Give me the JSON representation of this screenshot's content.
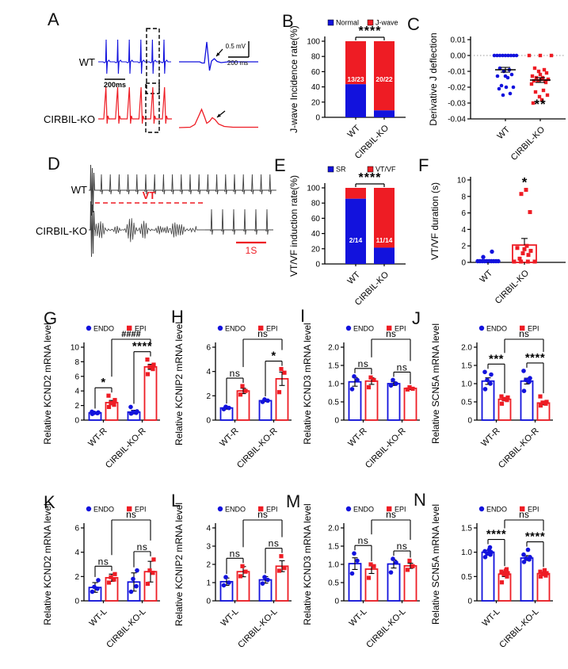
{
  "colors": {
    "blue": "#1212dd",
    "red": "#ee1c24",
    "trace": "#3f3f3f",
    "white": "#ffffff",
    "black": "#000000"
  },
  "panels": {
    "A": {
      "letter": "A",
      "trace_labels": [
        "WT",
        "CIRBIL-KO"
      ],
      "scalebar_time": "200ms",
      "inset_scale_voltage": "0.5 mV",
      "inset_scale_time": "200 ms"
    },
    "B": {
      "letter": "B"
    },
    "C": {
      "letter": "C"
    },
    "D": {
      "letter": "D",
      "trace_labels": [
        "WT",
        "CIRBIL-KO"
      ],
      "vt_label": "VT",
      "scalebar": "1S"
    },
    "E": {
      "letter": "E"
    },
    "F": {
      "letter": "F"
    },
    "G": {
      "letter": "G"
    },
    "H": {
      "letter": "H"
    },
    "I": {
      "letter": "I"
    },
    "J": {
      "letter": "J"
    },
    "K": {
      "letter": "K"
    },
    "L": {
      "letter": "L"
    },
    "M": {
      "letter": "M"
    },
    "N": {
      "letter": "N"
    }
  },
  "chart_data": {
    "B": {
      "type": "stacked_bar",
      "ylabel": "J-wave Incidence rate(%)",
      "legend": [
        {
          "label": "Normal",
          "color": "blue"
        },
        {
          "label": "J-wave",
          "color": "red"
        }
      ],
      "categories": [
        "WT",
        "CIRBIL-KO"
      ],
      "blue_pct": [
        43.5,
        9.1
      ],
      "counts": [
        "13/23",
        "20/22"
      ],
      "count_y_pct": [
        47,
        47
      ],
      "yticks": [
        0,
        20,
        40,
        60,
        80,
        100
      ],
      "ytick_labels": [
        "0",
        "20",
        "40",
        "60",
        "80",
        "100"
      ],
      "sig": "****"
    },
    "E": {
      "type": "stacked_bar",
      "ylabel": "VT/VF induction rate(%)",
      "legend": [
        {
          "label": "SR",
          "color": "blue"
        },
        {
          "label": "VT/VF",
          "color": "red"
        }
      ],
      "categories": [
        "WT",
        "CIRBIL-KO"
      ],
      "blue_pct": [
        85.7,
        21.4
      ],
      "counts": [
        "2/14",
        "11/14"
      ],
      "count_y_pct": [
        28,
        28
      ],
      "yticks": [
        0,
        20,
        40,
        60,
        80,
        100
      ],
      "ytick_labels": [
        "0",
        "20",
        "40",
        "60",
        "80",
        "100"
      ],
      "sig": "****"
    },
    "C": {
      "type": "column_scatter",
      "ylabel": "Derivative J deflection",
      "ymin": -0.04,
      "ymax": 0.01,
      "yticks": [
        0.01,
        0,
        -0.01,
        -0.02,
        -0.03,
        -0.04
      ],
      "ytick_labels": [
        "0.01",
        "0.00",
        "-0.01",
        "-0.02",
        "-0.03",
        "-0.04"
      ],
      "groups": [
        {
          "label": "WT",
          "color": "blue",
          "marker": "circle",
          "mean": -0.009,
          "sem": 0.0015,
          "points": [
            0,
            0,
            0,
            0,
            0,
            0,
            0,
            0,
            0,
            -0.008,
            -0.009,
            -0.01,
            -0.012,
            -0.013,
            -0.013,
            -0.014,
            -0.019,
            -0.02,
            -0.02,
            -0.021,
            -0.024,
            -0.025
          ]
        },
        {
          "label": "CIRBIL-KO",
          "color": "red",
          "marker": "square",
          "mean": -0.0155,
          "sem": 0.0015,
          "sig": "**",
          "points": [
            0,
            0,
            0,
            -0.008,
            -0.009,
            -0.01,
            -0.011,
            -0.012,
            -0.013,
            -0.014,
            -0.014,
            -0.015,
            -0.015,
            -0.016,
            -0.016,
            -0.016,
            -0.017,
            -0.018,
            -0.022,
            -0.023,
            -0.025,
            -0.026,
            -0.028,
            -0.03
          ]
        }
      ]
    },
    "F": {
      "type": "duration_scatter",
      "ylabel": "VT/VF duration (s)",
      "ymax": 10,
      "yticks": [
        0,
        2,
        4,
        6,
        8,
        10
      ],
      "ytick_labels": [
        "0",
        "2",
        "4",
        "6",
        "8",
        "10"
      ],
      "groups": [
        {
          "label": "WT",
          "color": "blue",
          "marker": "circle",
          "points": [
            0,
            0,
            0,
            0,
            0,
            0,
            0,
            0,
            0,
            0,
            0.65,
            1.3
          ]
        },
        {
          "label": "CIRBIL-KO",
          "color": "red",
          "marker": "square",
          "bar_mean": 2.1,
          "err": 0.8,
          "sig": "*",
          "points": [
            0,
            0,
            0,
            0,
            0.45,
            0.9,
            1.1,
            1.4,
            1.6,
            1.75,
            2.0,
            6.1,
            8.3,
            8.8
          ]
        }
      ]
    },
    "G": {
      "type": "grouped_bar",
      "ylabel": "Relative KCND2 mRNA level",
      "ymax": 10,
      "yticks": [
        0,
        2,
        4,
        6,
        8,
        10
      ],
      "ytick_labels": [
        "0",
        "2",
        "4",
        "6",
        "8",
        "10"
      ],
      "legend": [
        {
          "label": "ENDO",
          "color": "blue"
        },
        {
          "label": "EPI",
          "color": "red"
        }
      ],
      "groups": [
        "WT-R",
        "CIRBIL-KO-R"
      ],
      "bars": [
        {
          "series": "ENDO",
          "mean": 1.0,
          "err": 0.12,
          "points": [
            0.85,
            0.95,
            1.0,
            1.05,
            1.15
          ]
        },
        {
          "series": "EPI",
          "mean": 2.4,
          "err": 0.3,
          "points": [
            1.8,
            2.1,
            2.35,
            2.75,
            3.35
          ]
        },
        {
          "series": "ENDO",
          "mean": 1.1,
          "err": 0.25,
          "points": [
            0.9,
            1.0,
            1.1,
            1.2,
            1.8
          ]
        },
        {
          "series": "EPI",
          "mean": 7.3,
          "err": 0.35,
          "points": [
            6.3,
            7.0,
            7.3,
            7.6,
            8.3
          ]
        }
      ],
      "sig": [
        {
          "kind": "within",
          "group": 0,
          "label": "*"
        },
        {
          "kind": "within",
          "group": 1,
          "label": "****"
        },
        {
          "kind": "across",
          "label": "####"
        }
      ]
    },
    "H": {
      "type": "grouped_bar",
      "ylabel": "Relative KCNIP2 mRNA level",
      "ymax": 6,
      "yticks": [
        0,
        2,
        4,
        6
      ],
      "ytick_labels": [
        "0",
        "2",
        "4",
        "6"
      ],
      "legend": [
        {
          "label": "ENDO",
          "color": "blue"
        },
        {
          "label": "EPI",
          "color": "red"
        }
      ],
      "groups": [
        "WT-R",
        "CIRBIL-KO-R"
      ],
      "bars": [
        {
          "series": "ENDO",
          "mean": 1.0,
          "err": 0.1,
          "points": [
            0.9,
            1.0,
            1.1
          ]
        },
        {
          "series": "EPI",
          "mean": 2.4,
          "err": 0.22,
          "points": [
            2.1,
            2.4,
            2.8
          ]
        },
        {
          "series": "ENDO",
          "mean": 1.6,
          "err": 0.08,
          "points": [
            1.5,
            1.6,
            1.7
          ]
        },
        {
          "series": "EPI",
          "mean": 3.4,
          "err": 0.55,
          "points": [
            2.3,
            3.9,
            4.2
          ]
        }
      ],
      "sig": [
        {
          "kind": "within",
          "group": 0,
          "label": "ns"
        },
        {
          "kind": "within",
          "group": 1,
          "label": "*"
        },
        {
          "kind": "across",
          "label": "ns"
        }
      ]
    },
    "I": {
      "type": "grouped_bar",
      "ylabel": "Relative KCND3 mRNA level",
      "ymax": 2,
      "yticks": [
        0,
        0.5,
        1,
        1.5,
        2
      ],
      "ytick_labels": [
        "0",
        "0.5",
        "1.0",
        "1.5",
        "2.0"
      ],
      "legend": [
        {
          "label": "ENDO",
          "color": "blue"
        },
        {
          "label": "EPI",
          "color": "red"
        }
      ],
      "groups": [
        "WT-R",
        "CIRBIL-KO-R"
      ],
      "bars": [
        {
          "series": "ENDO",
          "mean": 1.05,
          "err": 0.12,
          "points": [
            0.85,
            1.1,
            1.2
          ]
        },
        {
          "series": "EPI",
          "mean": 1.07,
          "err": 0.09,
          "points": [
            0.9,
            1.1,
            1.17
          ]
        },
        {
          "series": "ENDO",
          "mean": 1.0,
          "err": 0.05,
          "points": [
            0.95,
            1.0,
            1.1
          ]
        },
        {
          "series": "EPI",
          "mean": 0.87,
          "err": 0.03,
          "points": [
            0.84,
            0.86,
            0.9
          ]
        }
      ],
      "sig": [
        {
          "kind": "within",
          "group": 0,
          "label": "ns"
        },
        {
          "kind": "within",
          "group": 1,
          "label": "ns"
        },
        {
          "kind": "across",
          "label": "ns"
        }
      ]
    },
    "J": {
      "type": "grouped_bar",
      "ylabel": "Relative SCN5A mRNA level",
      "ymax": 2,
      "yticks": [
        0,
        0.5,
        1,
        1.5,
        2
      ],
      "ytick_labels": [
        "0",
        "0.5",
        "1.0",
        "1.5",
        "2.0"
      ],
      "legend": [
        {
          "label": "ENDO",
          "color": "blue"
        },
        {
          "label": "EPI",
          "color": "red"
        }
      ],
      "groups": [
        "WT-R",
        "CIRBIL-KO-R"
      ],
      "bars": [
        {
          "series": "ENDO",
          "mean": 1.07,
          "err": 0.09,
          "points": [
            0.85,
            1.0,
            1.1,
            1.25,
            1.32
          ]
        },
        {
          "series": "EPI",
          "mean": 0.57,
          "err": 0.04,
          "points": [
            0.45,
            0.55,
            0.58,
            0.62,
            0.65
          ]
        },
        {
          "series": "ENDO",
          "mean": 1.07,
          "err": 0.08,
          "points": [
            0.8,
            1.05,
            1.1,
            1.15,
            1.35
          ]
        },
        {
          "series": "EPI",
          "mean": 0.47,
          "err": 0.05,
          "points": [
            0.4,
            0.45,
            0.48,
            0.5,
            0.65
          ]
        }
      ],
      "sig": [
        {
          "kind": "within",
          "group": 0,
          "label": "***"
        },
        {
          "kind": "within",
          "group": 1,
          "label": "****"
        },
        {
          "kind": "across",
          "label": "ns"
        }
      ]
    },
    "K": {
      "type": "grouped_bar",
      "ylabel": "Relative KCND2 mRNA level",
      "ymax": 6,
      "yticks": [
        0,
        2,
        4,
        6
      ],
      "ytick_labels": [
        "0",
        "2",
        "4",
        "6"
      ],
      "legend": [
        {
          "label": "ENDO",
          "color": "blue"
        },
        {
          "label": "EPI",
          "color": "red"
        }
      ],
      "groups": [
        "WT-L",
        "CIRBIL-KO-L"
      ],
      "bars": [
        {
          "series": "ENDO",
          "mean": 1.1,
          "err": 0.4,
          "points": [
            0.75,
            1.0,
            1.15,
            1.7
          ]
        },
        {
          "series": "EPI",
          "mean": 1.9,
          "err": 0.3,
          "points": [
            1.5,
            1.75,
            1.95,
            2.2
          ]
        },
        {
          "series": "ENDO",
          "mean": 1.55,
          "err": 0.75,
          "points": [
            0.75,
            1.2,
            1.8,
            2.5
          ]
        },
        {
          "series": "EPI",
          "mean": 2.4,
          "err": 0.85,
          "points": [
            1.4,
            2.3,
            2.5,
            3.4
          ]
        }
      ],
      "sig": [
        {
          "kind": "within",
          "group": 0,
          "label": "ns"
        },
        {
          "kind": "within",
          "group": 1,
          "label": "ns"
        },
        {
          "kind": "across",
          "label": "ns"
        }
      ]
    },
    "L": {
      "type": "grouped_bar",
      "ylabel": "Relative KCNIP2 mRNA level",
      "ymax": 4,
      "yticks": [
        0,
        1,
        2,
        3,
        4
      ],
      "ytick_labels": [
        "0",
        "1",
        "2",
        "3",
        "4"
      ],
      "legend": [
        {
          "label": "ENDO",
          "color": "blue"
        },
        {
          "label": "EPI",
          "color": "red"
        }
      ],
      "groups": [
        "WT-L",
        "CIRBIL-KO-L"
      ],
      "bars": [
        {
          "series": "ENDO",
          "mean": 1.05,
          "err": 0.2,
          "points": [
            0.85,
            1.0,
            1.3
          ]
        },
        {
          "series": "EPI",
          "mean": 1.6,
          "err": 0.28,
          "points": [
            1.35,
            1.6,
            1.9
          ]
        },
        {
          "series": "ENDO",
          "mean": 1.15,
          "err": 0.18,
          "points": [
            0.95,
            1.15,
            1.3
          ]
        },
        {
          "series": "EPI",
          "mean": 1.9,
          "err": 0.3,
          "points": [
            1.65,
            1.8,
            2.45
          ]
        }
      ],
      "sig": [
        {
          "kind": "within",
          "group": 0,
          "label": "ns"
        },
        {
          "kind": "within",
          "group": 1,
          "label": "ns"
        },
        {
          "kind": "across",
          "label": "ns"
        }
      ]
    },
    "M": {
      "type": "grouped_bar",
      "ylabel": "Relative KCND3 mRNA level",
      "ymax": 2,
      "yticks": [
        0,
        0.5,
        1,
        1.5,
        2
      ],
      "ytick_labels": [
        "0",
        "0.5",
        "1.0",
        "1.5",
        "2.0"
      ],
      "legend": [
        {
          "label": "ENDO",
          "color": "blue"
        },
        {
          "label": "EPI",
          "color": "red"
        }
      ],
      "groups": [
        "WT-L",
        "CIRBIL-KO-L"
      ],
      "bars": [
        {
          "series": "ENDO",
          "mean": 1.02,
          "err": 0.16,
          "points": [
            0.75,
            1.1,
            1.3
          ]
        },
        {
          "series": "EPI",
          "mean": 0.87,
          "err": 0.12,
          "points": [
            0.63,
            0.95,
            1.0
          ]
        },
        {
          "series": "ENDO",
          "mean": 1.01,
          "err": 0.11,
          "points": [
            0.78,
            1.05,
            1.15
          ]
        },
        {
          "series": "EPI",
          "mean": 0.96,
          "err": 0.07,
          "points": [
            0.85,
            0.95,
            1.1
          ]
        }
      ],
      "sig": [
        {
          "kind": "within",
          "group": 0,
          "label": "ns"
        },
        {
          "kind": "within",
          "group": 1,
          "label": "ns"
        },
        {
          "kind": "across",
          "label": "ns"
        }
      ]
    },
    "N": {
      "type": "grouped_bar",
      "ylabel": "Relative SCN5A mRNA level",
      "ymax": 1.5,
      "yticks": [
        0,
        0.5,
        1,
        1.5
      ],
      "ytick_labels": [
        "0",
        "0.5",
        "1.0",
        "1.5"
      ],
      "legend": [
        {
          "label": "ENDO",
          "color": "blue"
        },
        {
          "label": "EPI",
          "color": "red"
        }
      ],
      "groups": [
        "WT-L",
        "CIRBIL-KO-L"
      ],
      "bars": [
        {
          "series": "ENDO",
          "mean": 1.0,
          "err": 0.04,
          "points": [
            0.9,
            0.95,
            0.97,
            1.0,
            1.02,
            1.05,
            1.1
          ]
        },
        {
          "series": "EPI",
          "mean": 0.55,
          "err": 0.05,
          "points": [
            0.38,
            0.5,
            0.55,
            0.57,
            0.6,
            0.62,
            0.65
          ]
        },
        {
          "series": "ENDO",
          "mean": 0.88,
          "err": 0.05,
          "points": [
            0.8,
            0.85,
            0.87,
            0.9,
            0.95,
            1.05
          ]
        },
        {
          "series": "EPI",
          "mean": 0.56,
          "err": 0.03,
          "points": [
            0.5,
            0.52,
            0.55,
            0.57,
            0.6,
            0.63
          ]
        }
      ],
      "sig": [
        {
          "kind": "within",
          "group": 0,
          "label": "****"
        },
        {
          "kind": "within",
          "group": 1,
          "label": "****"
        },
        {
          "kind": "across",
          "label": "ns"
        }
      ]
    }
  }
}
